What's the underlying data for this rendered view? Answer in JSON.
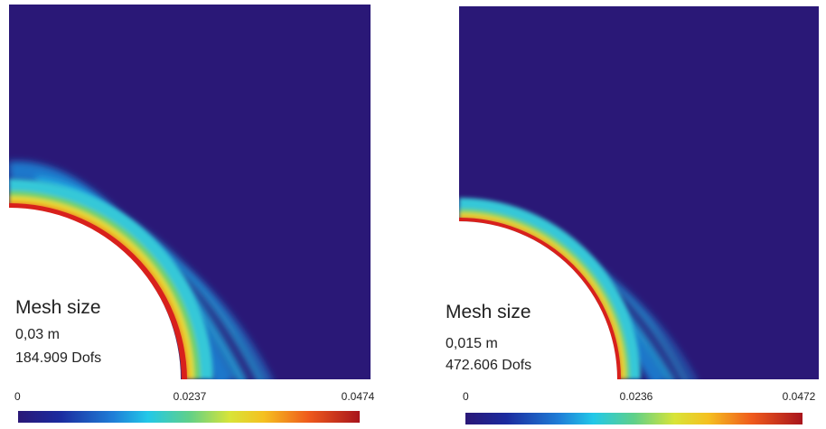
{
  "panels": [
    {
      "mesh_label": "Mesh size",
      "mesh_size": "0,03 m",
      "dofs": "184.909 Dofs",
      "colorbar_ticks": [
        "0",
        "0.0237",
        "0.0474"
      ]
    },
    {
      "mesh_label": "Mesh size",
      "mesh_size": "0,015 m",
      "dofs": "472.606 Dofs",
      "colorbar_ticks": [
        "0",
        "0.0236",
        "0.0472"
      ]
    }
  ]
}
